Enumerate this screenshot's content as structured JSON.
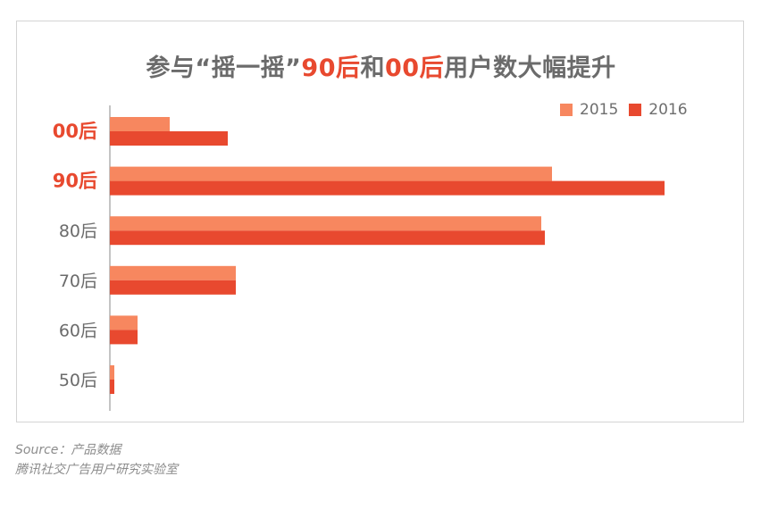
{
  "chart_data": {
    "type": "bar",
    "orientation": "horizontal",
    "title_parts": [
      {
        "text": "参与“摇一摇”",
        "highlight": false
      },
      {
        "text": "90后",
        "highlight": true
      },
      {
        "text": "和",
        "highlight": false
      },
      {
        "text": "00后",
        "highlight": true
      },
      {
        "text": "用户数大幅提升",
        "highlight": false
      }
    ],
    "categories": [
      "00后",
      "90后",
      "80后",
      "70后",
      "60后",
      "50后"
    ],
    "highlight_categories": [
      "00后",
      "90后"
    ],
    "series": [
      {
        "name": "2015",
        "color": "#f7875f",
        "values": [
          67,
          495,
          483,
          141,
          31,
          5
        ]
      },
      {
        "name": "2016",
        "color": "#e8492f",
        "values": [
          132,
          621,
          487,
          141,
          31,
          5
        ]
      }
    ],
    "xlim": [
      0,
      650
    ],
    "axis_ticks_visible": false,
    "grid": false,
    "legend_position": "top-right",
    "accent_color": "#e8492f",
    "label_color": "#6b6b6b"
  },
  "footer": {
    "source_line1": "Source：产品数据",
    "source_line2": "腾讯社交广告用户研究实验室"
  }
}
